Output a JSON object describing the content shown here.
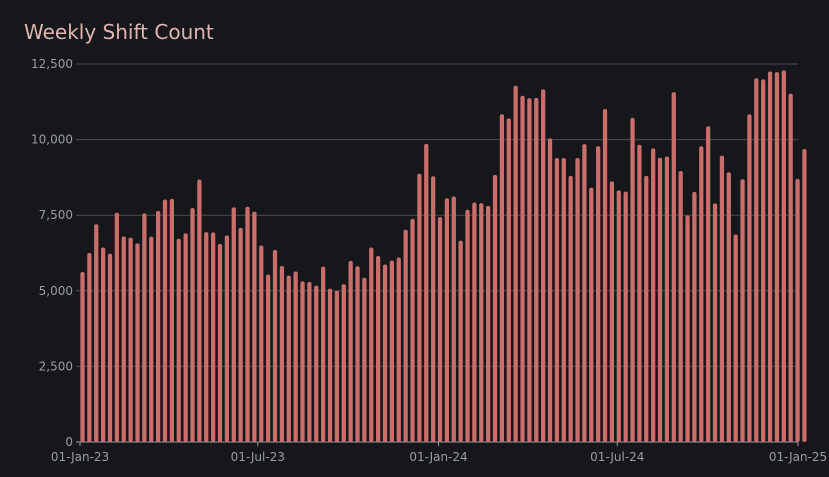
{
  "title": "Weekly Shift Count",
  "colors": {
    "bar": "#c96e6b",
    "background": "#16171b",
    "grid": "#4a4b50",
    "title": "#e0b4b1",
    "ticks": "#9a9ca3"
  },
  "chart_data": {
    "type": "bar",
    "title": "Weekly Shift Count",
    "xlabel": "",
    "ylabel": "",
    "ylim": [
      0,
      12500
    ],
    "yticks": [
      0,
      2500,
      5000,
      7500,
      10000,
      12500
    ],
    "ytick_labels": [
      "0",
      "2,500",
      "5,000",
      "7,500",
      "10,000",
      "12,500"
    ],
    "xlim": [
      "2023-01-01",
      "2025-01-01"
    ],
    "xticks": [
      "2023-01-01",
      "2023-07-01",
      "2024-01-01",
      "2024-07-01",
      "2025-01-01"
    ],
    "xtick_labels": [
      "01-Jan-23",
      "01-Jul-23",
      "01-Jan-24",
      "01-Jul-24",
      "01-Jan-25"
    ],
    "grid": "horizontal",
    "legend": "none",
    "bar_interval": "weekly",
    "first_bar_date": "2023-01-01",
    "values": [
      5620,
      6250,
      7200,
      6430,
      6230,
      7580,
      6800,
      6760,
      6570,
      7560,
      6790,
      7640,
      8020,
      8040,
      6720,
      6900,
      7740,
      8680,
      6940,
      6930,
      6550,
      6830,
      7760,
      7080,
      7780,
      7620,
      6500,
      5540,
      6350,
      5820,
      5500,
      5640,
      5310,
      5290,
      5170,
      5800,
      5070,
      5000,
      5220,
      5990,
      5810,
      5430,
      6430,
      6150,
      5870,
      6000,
      6100,
      7020,
      7380,
      8870,
      9860,
      8790,
      7440,
      8060,
      8120,
      6660,
      7680,
      7920,
      7900,
      7810,
      8830,
      10840,
      10700,
      11780,
      11450,
      11370,
      11380,
      11660,
      10040,
      9390,
      9390,
      8800,
      9390,
      9850,
      8410,
      9780,
      11010,
      8620,
      8320,
      8280,
      10720,
      9830,
      8800,
      9710,
      9400,
      9440,
      11570,
      8960,
      7490,
      8270,
      9780,
      10440,
      7890,
      9470,
      8920,
      6860,
      8690,
      10840,
      12030,
      11990,
      12250,
      12230,
      12290,
      11520,
      8700,
      9690
    ]
  }
}
